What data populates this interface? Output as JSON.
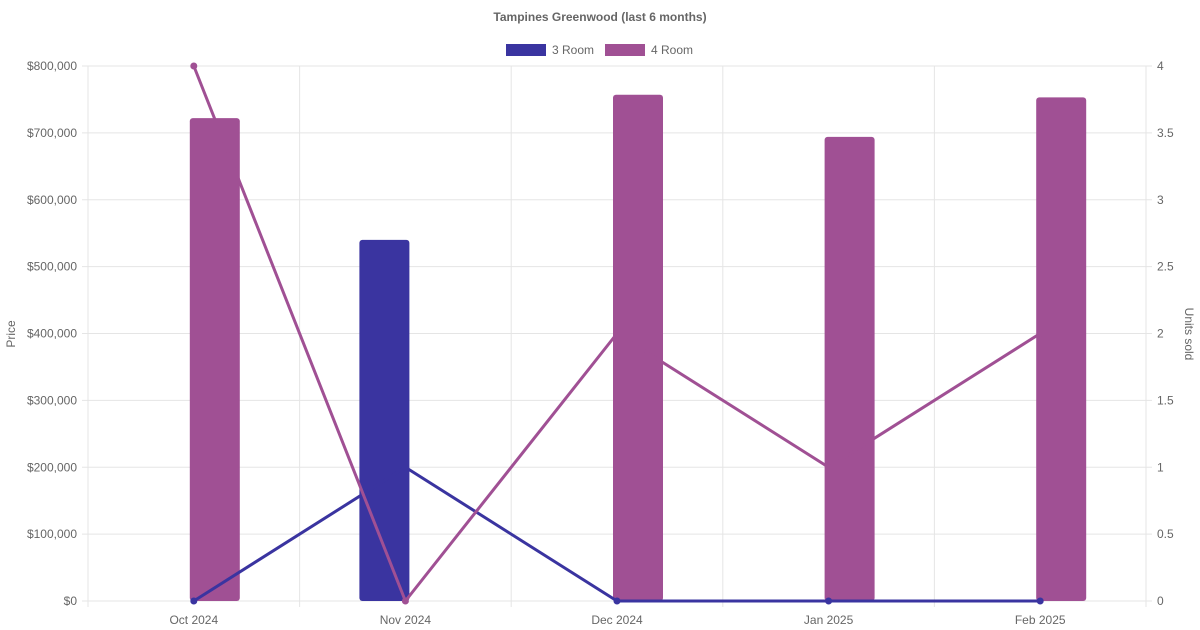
{
  "chart_data": {
    "type": "bar",
    "title": "Tampines Greenwood (last 6 months)",
    "categories": [
      "Oct 2024",
      "Nov 2024",
      "Dec 2024",
      "Jan 2025",
      "Feb 2025"
    ],
    "ylabel": "Price",
    "y2label": "Units sold",
    "ylim": [
      0,
      800000
    ],
    "y2lim": [
      0,
      4
    ],
    "y_ticks": [
      "$0",
      "$100,000",
      "$200,000",
      "$300,000",
      "$400,000",
      "$500,000",
      "$600,000",
      "$700,000",
      "$800,000"
    ],
    "y2_ticks": [
      "0",
      "0.5",
      "1",
      "1.5",
      "2",
      "2.5",
      "3",
      "3.5",
      "4"
    ],
    "legend_position": "top-center",
    "grid": true,
    "series": [
      {
        "name": "3 Room",
        "color": "#3a34a0",
        "price_values": [
          null,
          540000,
          null,
          null,
          null
        ],
        "units_sold": [
          0,
          1,
          0,
          0,
          0
        ]
      },
      {
        "name": "4 Room",
        "color": "#a05094",
        "price_values": [
          722000,
          null,
          757000,
          694000,
          753000
        ],
        "units_sold": [
          4,
          0,
          2,
          1,
          2
        ]
      }
    ]
  }
}
